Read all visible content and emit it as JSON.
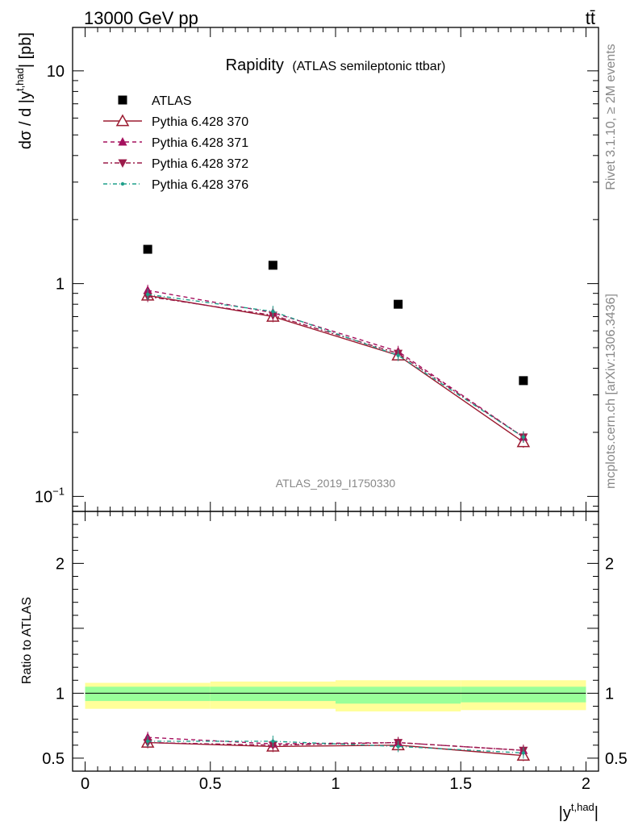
{
  "header": {
    "energy_label": "13000 GeV pp",
    "process_label": "tt̄"
  },
  "side_labels": {
    "rivet": "Rivet 3.1.10, ≥ 2M events",
    "mcplots": "mcplots.cern.ch [arXiv:1306.3436]"
  },
  "colors": {
    "data": "#000000",
    "pythia370": "#9b1b30",
    "pythia371": "#a5105e",
    "pythia372": "#9b1b4a",
    "pythia376": "#1f9f8a",
    "band_inner": "#99ff99",
    "band_outer": "#ffff99"
  },
  "chart_data": [
    {
      "type": "scatter",
      "title": "Rapidity",
      "subtitle": "(ATLAS semileptonic ttbar)",
      "watermark": "ATLAS_2019_I1750330",
      "xlabel": "|y^{t,had}|",
      "ylabel": "dσ / d |y^{t,had}| [pb]",
      "yscale": "log",
      "xlim": [
        -0.05,
        2.05
      ],
      "ylim": [
        0.085,
        16
      ],
      "ytick_labels": [
        "10^{-1}",
        "1",
        "10"
      ],
      "legend_position": "top-left",
      "x": [
        0.25,
        0.75,
        1.25,
        1.75
      ],
      "series": [
        {
          "name": "ATLAS",
          "values": [
            1.45,
            1.22,
            0.8,
            0.35
          ],
          "style": "square"
        },
        {
          "name": "Pythia 6.428 370",
          "values": [
            0.88,
            0.7,
            0.46,
            0.18
          ],
          "style": "open-triangle-solid"
        },
        {
          "name": "Pythia 6.428 371",
          "values": [
            0.93,
            0.73,
            0.48,
            0.19
          ],
          "style": "triangle-dashed"
        },
        {
          "name": "Pythia 6.428 372",
          "values": [
            0.87,
            0.71,
            0.47,
            0.19
          ],
          "style": "down-triangle-dashdot"
        },
        {
          "name": "Pythia 6.428 376",
          "values": [
            0.89,
            0.74,
            0.46,
            0.19
          ],
          "style": "dot-dashdot"
        }
      ]
    },
    {
      "type": "scatter",
      "xlabel": "|y^{t,had}|",
      "ylabel": "Ratio to ATLAS",
      "xlim": [
        -0.05,
        2.05
      ],
      "ylim": [
        0.4,
        2.4
      ],
      "xtick_labels": [
        "0",
        "0.5",
        "1",
        "1.5",
        "2"
      ],
      "ytick_labels": [
        "0.5",
        "1",
        "2"
      ],
      "bins": [
        [
          0.0,
          0.5
        ],
        [
          0.5,
          1.0
        ],
        [
          1.0,
          1.5
        ],
        [
          1.5,
          2.0
        ]
      ],
      "band_inner": [
        [
          0.94,
          1.05
        ],
        [
          0.94,
          1.05
        ],
        [
          0.92,
          1.05
        ],
        [
          0.93,
          1.05
        ]
      ],
      "band_outer": [
        [
          0.88,
          1.08
        ],
        [
          0.88,
          1.09
        ],
        [
          0.86,
          1.1
        ],
        [
          0.87,
          1.1
        ]
      ],
      "x": [
        0.25,
        0.75,
        1.25,
        1.75
      ],
      "series": [
        {
          "name": "Pythia 6.428 370",
          "values": [
            0.62,
            0.59,
            0.6,
            0.52
          ]
        },
        {
          "name": "Pythia 6.428 371",
          "values": [
            0.66,
            0.61,
            0.62,
            0.56
          ]
        },
        {
          "name": "Pythia 6.428 372",
          "values": [
            0.62,
            0.6,
            0.62,
            0.56
          ]
        },
        {
          "name": "Pythia 6.428 376",
          "values": [
            0.63,
            0.63,
            0.59,
            0.54
          ]
        }
      ]
    }
  ]
}
